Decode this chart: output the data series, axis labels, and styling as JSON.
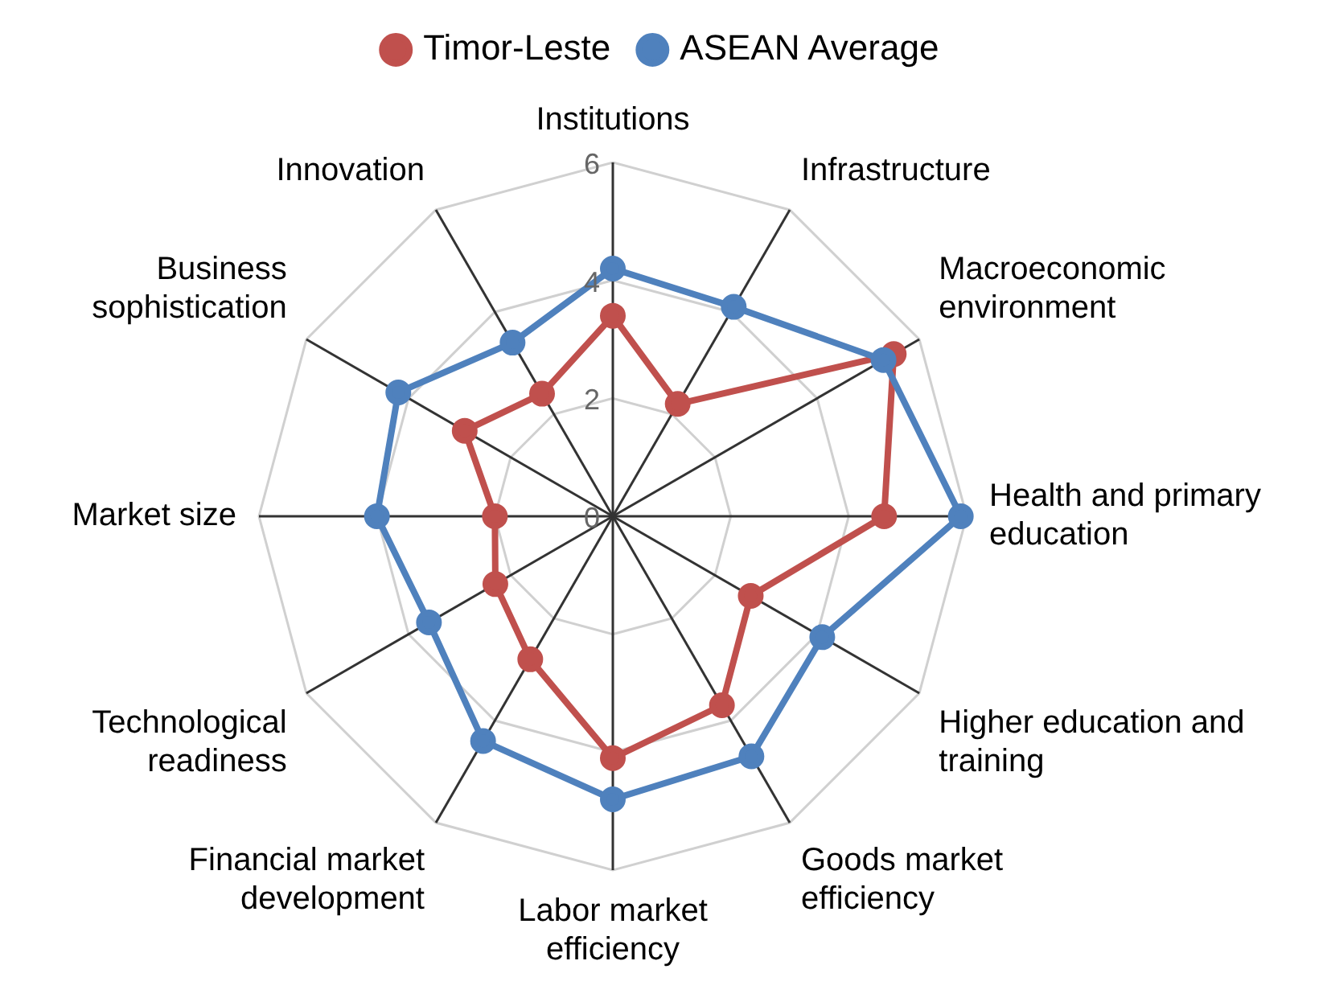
{
  "chart_data": {
    "type": "radar",
    "categories": [
      "Institutions",
      "Infrastructure",
      "Macroeconomic environment",
      "Health and primary education",
      "Higher education and training",
      "Goods market efficiency",
      "Labor market efficiency",
      "Financial market development",
      "Technological readiness",
      "Market size",
      "Business sophistication",
      "Innovation"
    ],
    "series": [
      {
        "name": "Timor-Leste",
        "color": "#c0504d",
        "values": [
          3.4,
          2.2,
          5.5,
          4.6,
          2.7,
          3.7,
          4.1,
          2.8,
          2.3,
          2.0,
          2.9,
          2.4
        ]
      },
      {
        "name": "ASEAN Average",
        "color": "#4f81bd",
        "values": [
          4.2,
          4.1,
          5.3,
          5.9,
          4.1,
          4.7,
          4.8,
          4.4,
          3.6,
          4.0,
          4.2,
          3.4
        ]
      }
    ],
    "ylim": [
      0,
      6
    ],
    "yticks": [
      0,
      2,
      4,
      6
    ],
    "grid": true,
    "legend": "top",
    "marker": "circle",
    "line_style": "solid"
  }
}
